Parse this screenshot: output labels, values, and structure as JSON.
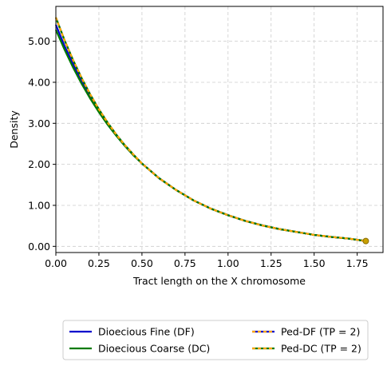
{
  "chart_data": {
    "type": "line",
    "title": "",
    "xlabel": "Tract length on the X chromosome",
    "ylabel": "Density",
    "xlim": [
      0.0,
      1.9
    ],
    "ylim": [
      -0.15,
      5.85
    ],
    "grid": true,
    "legend_position": "bottom-center",
    "x_ticks": [
      "0.00",
      "0.25",
      "0.50",
      "0.75",
      "1.00",
      "1.25",
      "1.50",
      "1.75"
    ],
    "y_ticks": [
      "0.00",
      "1.00",
      "2.00",
      "3.00",
      "4.00",
      "5.00"
    ],
    "x": [
      0.0,
      0.05,
      0.1,
      0.15,
      0.2,
      0.25,
      0.3,
      0.35,
      0.4,
      0.45,
      0.5,
      0.6,
      0.7,
      0.8,
      0.9,
      1.0,
      1.1,
      1.2,
      1.3,
      1.4,
      1.5,
      1.6,
      1.7,
      1.8
    ],
    "series": [
      {
        "name": "Dioecious Fine (DF)",
        "color": "#0000cc",
        "style": "solid",
        "values": [
          5.4,
          4.89,
          4.44,
          4.02,
          3.65,
          3.31,
          3.0,
          2.72,
          2.46,
          2.23,
          2.02,
          1.66,
          1.37,
          1.12,
          0.92,
          0.76,
          0.62,
          0.51,
          0.42,
          0.35,
          0.28,
          0.23,
          0.19,
          0.13
        ]
      },
      {
        "name": "Dioecious Coarse (DC)",
        "color": "#007a00",
        "style": "solid",
        "values": [
          5.28,
          4.8,
          4.36,
          3.96,
          3.6,
          3.27,
          2.97,
          2.7,
          2.45,
          2.22,
          2.02,
          1.66,
          1.37,
          1.12,
          0.92,
          0.76,
          0.62,
          0.51,
          0.42,
          0.35,
          0.28,
          0.23,
          0.19,
          0.13
        ]
      },
      {
        "name": "Ped-DF (TP = 2)",
        "color": "#ffa500",
        "dash_color": "#0000cc",
        "style": "dashed",
        "values": [
          5.58,
          5.03,
          4.54,
          4.1,
          3.7,
          3.34,
          3.02,
          2.73,
          2.47,
          2.24,
          2.02,
          1.66,
          1.37,
          1.12,
          0.92,
          0.76,
          0.62,
          0.51,
          0.42,
          0.35,
          0.28,
          0.23,
          0.19,
          0.13
        ]
      },
      {
        "name": "Ped-DC (TP = 2)",
        "color": "#ffa500",
        "dash_color": "#007a00",
        "style": "dashed",
        "values": [
          5.58,
          5.03,
          4.54,
          4.1,
          3.7,
          3.34,
          3.02,
          2.73,
          2.47,
          2.24,
          2.02,
          1.66,
          1.37,
          1.12,
          0.92,
          0.76,
          0.62,
          0.51,
          0.42,
          0.35,
          0.28,
          0.23,
          0.19,
          0.13
        ]
      }
    ],
    "end_marker": {
      "x": 1.8,
      "y": 0.13,
      "color": "#c9a100"
    }
  }
}
